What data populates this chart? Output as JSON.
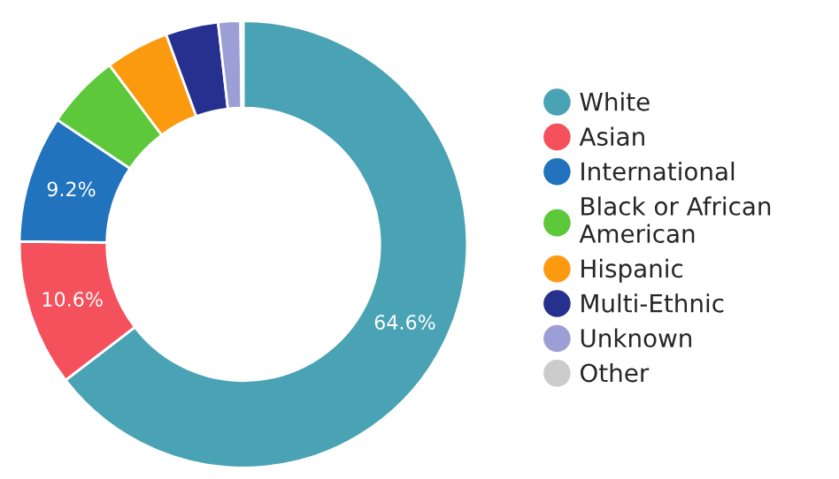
{
  "chart_data": {
    "type": "donut",
    "categories": [
      "White",
      "Asian",
      "International",
      "Black or African\nAmerican",
      "Hispanic",
      "Multi-Ethnic",
      "Unknown",
      "Other"
    ],
    "values": [
      64.6,
      10.6,
      9.2,
      5.4,
      4.6,
      3.8,
      1.6,
      0.2
    ],
    "colors": [
      "#4aa3b4",
      "#f5515d",
      "#2173bd",
      "#5cc83a",
      "#fb9a0f",
      "#26318f",
      "#9c9fd5",
      "#cccccc"
    ],
    "value_labels": [
      "64.6%",
      "10.6%",
      "9.2%",
      null,
      null,
      null,
      null,
      null
    ],
    "legend": "right"
  }
}
